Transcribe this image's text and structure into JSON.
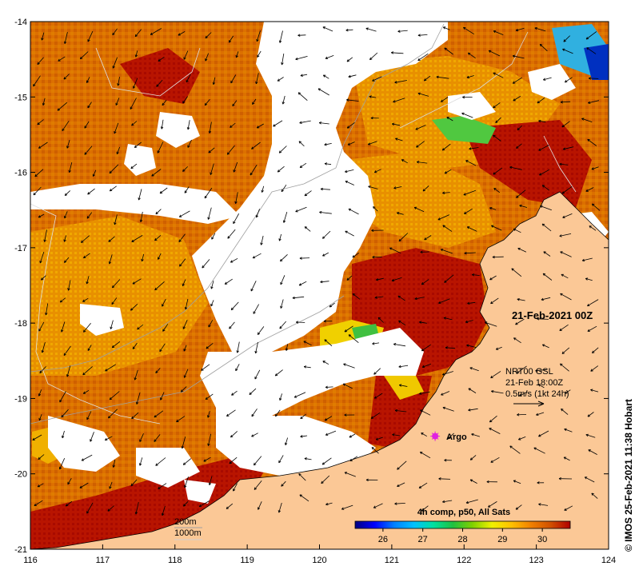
{
  "map": {
    "date_label": "21-Feb-2021 00Z",
    "current_info": {
      "line1": "NRT00 GSL",
      "line2": "21-Feb 18:00Z",
      "line3": "0.5m/s (1kt 24h)"
    },
    "marker": {
      "label": "Argo",
      "lon": 121.6,
      "lat": -19.5,
      "color": "#e020e0"
    },
    "bathymetry_legend": [
      "200m",
      "1000m"
    ],
    "colorbar": {
      "title": "4h comp, p50, All Sats",
      "ticks": [
        "26",
        "27",
        "28",
        "29",
        "30"
      ],
      "range": [
        25.3,
        30.7
      ],
      "colors": [
        "#000080",
        "#0000ff",
        "#0080ff",
        "#00c0ff",
        "#00e0a0",
        "#20c040",
        "#80d000",
        "#f0f000",
        "#ffc000",
        "#f08000",
        "#d05000",
        "#b00000"
      ]
    },
    "credit": "© IMOS 25-Feb-2021 11:38 Hobart",
    "x_ticks": [
      "116",
      "117",
      "118",
      "119",
      "120",
      "121",
      "122",
      "123",
      "124"
    ],
    "y_ticks": [
      "-14",
      "-15",
      "-16",
      "-17",
      "-18",
      "-19",
      "-20",
      "-21"
    ],
    "x_range": [
      116,
      124
    ],
    "y_range": [
      -21,
      -14
    ],
    "colors": {
      "land": "#fbc896",
      "cloud": "#ffffff",
      "warm": "#d86800",
      "hot": "#b01000",
      "mid": "#e88a00",
      "cool": "#f0b000",
      "green": "#40c040"
    }
  }
}
